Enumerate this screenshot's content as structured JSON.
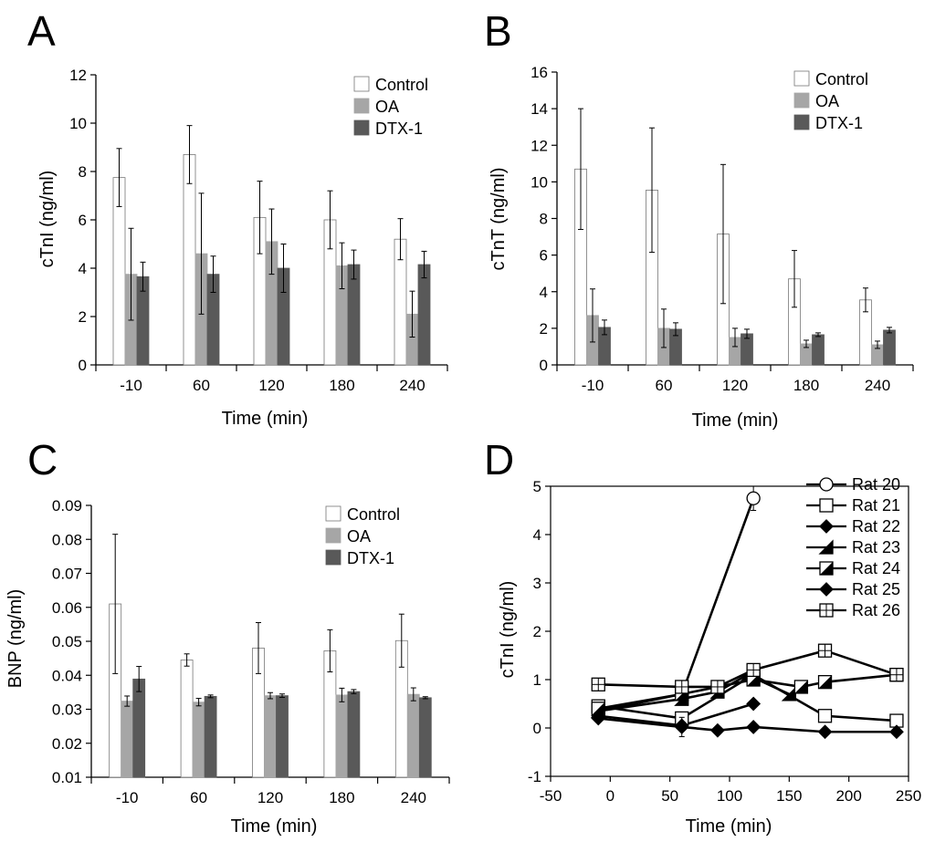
{
  "colors": {
    "control": "#ffffff",
    "oa": "#a6a6a6",
    "dtx": "#595959",
    "axis": "#000000"
  },
  "chart_data": [
    {
      "panel": "A",
      "type": "bar",
      "xlabel": "Time (min)",
      "ylabel": "cTnI (ng/ml)",
      "ylim": [
        0,
        12
      ],
      "yticks": [
        0,
        2,
        4,
        6,
        8,
        10,
        12
      ],
      "categories": [
        "-10",
        "60",
        "120",
        "180",
        "240"
      ],
      "legend_position": "top-right",
      "series": [
        {
          "name": "Control",
          "color_key": "control",
          "values": [
            7.75,
            8.7,
            6.1,
            6.0,
            5.2
          ],
          "errors": [
            1.2,
            1.2,
            1.5,
            1.2,
            0.85
          ]
        },
        {
          "name": "OA",
          "color_key": "oa",
          "values": [
            3.75,
            4.6,
            5.1,
            4.1,
            2.1
          ],
          "errors": [
            1.9,
            2.5,
            1.35,
            0.95,
            0.95
          ]
        },
        {
          "name": "DTX-1",
          "color_key": "dtx",
          "values": [
            3.65,
            3.75,
            4.0,
            4.15,
            4.15
          ],
          "errors": [
            0.6,
            0.75,
            1.0,
            0.6,
            0.55
          ]
        }
      ]
    },
    {
      "panel": "B",
      "type": "bar",
      "xlabel": "Time (min)",
      "ylabel": "cTnT (ng/ml)",
      "ylim": [
        0,
        16
      ],
      "yticks": [
        0,
        2,
        4,
        6,
        8,
        10,
        12,
        14,
        16
      ],
      "categories": [
        "-10",
        "60",
        "120",
        "180",
        "240"
      ],
      "legend_position": "top-right",
      "series": [
        {
          "name": "Control",
          "color_key": "control",
          "values": [
            10.7,
            9.55,
            7.15,
            4.7,
            3.55
          ],
          "errors": [
            3.3,
            3.4,
            3.8,
            1.55,
            0.65
          ]
        },
        {
          "name": "OA",
          "color_key": "oa",
          "values": [
            2.7,
            2.0,
            1.5,
            1.15,
            1.1
          ],
          "errors": [
            1.45,
            1.05,
            0.5,
            0.2,
            0.2
          ]
        },
        {
          "name": "DTX-1",
          "color_key": "dtx",
          "values": [
            2.05,
            1.95,
            1.7,
            1.65,
            1.9
          ],
          "errors": [
            0.4,
            0.35,
            0.25,
            0.1,
            0.15
          ]
        }
      ]
    },
    {
      "panel": "C",
      "type": "bar",
      "xlabel": "Time (min)",
      "ylabel": "BNP (ng/ml)",
      "ylim": [
        0.01,
        0.09
      ],
      "yticks": [
        0.01,
        0.02,
        0.03,
        0.04,
        0.05,
        0.06,
        0.07,
        0.08,
        0.09
      ],
      "ytick_labels": [
        "0.01",
        "0.02",
        "0.03",
        "0.04",
        "0.05",
        "0.06",
        "0.07",
        "0.08",
        "0.09"
      ],
      "categories": [
        "-10",
        "60",
        "120",
        "180",
        "240"
      ],
      "legend_position": "top-right",
      "series": [
        {
          "name": "Control",
          "color_key": "control",
          "values": [
            0.061,
            0.0445,
            0.048,
            0.0472,
            0.0502
          ],
          "errors": [
            0.0205,
            0.0018,
            0.0075,
            0.0062,
            0.0078
          ]
        },
        {
          "name": "OA",
          "color_key": "oa",
          "values": [
            0.0324,
            0.0321,
            0.034,
            0.0342,
            0.0344
          ],
          "errors": [
            0.0015,
            0.0011,
            0.0009,
            0.002,
            0.0019
          ]
        },
        {
          "name": "DTX-1",
          "color_key": "dtx",
          "values": [
            0.0389,
            0.0338,
            0.034,
            0.0352,
            0.0334
          ],
          "errors": [
            0.0037,
            0.0004,
            0.0005,
            0.0006,
            0.0003
          ]
        }
      ]
    },
    {
      "panel": "D",
      "type": "line",
      "xlabel": "Time (min)",
      "ylabel": "cTnI (ng/ml)",
      "xlim": [
        -50,
        250
      ],
      "ylim": [
        -1,
        5
      ],
      "xticks": [
        -50,
        0,
        50,
        100,
        150,
        200,
        250
      ],
      "yticks": [
        -1,
        0,
        1,
        2,
        3,
        4,
        5
      ],
      "legend_position": "top-right",
      "series": [
        {
          "name": "Rat 20",
          "marker": "circle-open",
          "x": [
            -10,
            60,
            120
          ],
          "y": [
            0.35,
            0.7,
            4.75
          ],
          "errors": [
            0,
            0,
            0.25
          ]
        },
        {
          "name": "Rat 21",
          "marker": "square-open",
          "x": [
            -10,
            60,
            120,
            180,
            240
          ],
          "y": [
            0.45,
            0.2,
            1.1,
            0.25,
            0.15
          ],
          "errors": [
            0,
            0,
            0,
            0,
            0
          ]
        },
        {
          "name": "Rat 22",
          "marker": "diamond",
          "x": [
            -10,
            60,
            120
          ],
          "y": [
            0.25,
            0.05,
            0.5
          ],
          "errors": [
            0,
            0,
            0
          ]
        },
        {
          "name": "Rat 23",
          "marker": "triangle",
          "x": [
            -10,
            60,
            90,
            115,
            150
          ],
          "y": [
            0.35,
            0.6,
            0.75,
            1.1,
            0.7
          ],
          "errors": [
            0,
            0,
            0,
            0,
            0
          ]
        },
        {
          "name": "Rat 24",
          "marker": "half-square",
          "x": [
            -10,
            60,
            120,
            160,
            180,
            240
          ],
          "y": [
            0.4,
            0.7,
            1.0,
            0.85,
            0.95,
            1.1
          ],
          "errors": [
            0,
            0,
            0,
            0,
            0,
            0
          ]
        },
        {
          "name": "Rat 25",
          "marker": "diamond",
          "x": [
            -10,
            60,
            90,
            120,
            180,
            240
          ],
          "y": [
            0.2,
            0.02,
            -0.05,
            0.02,
            -0.08,
            -0.08
          ],
          "errors": [
            0,
            0.2,
            0,
            0,
            0,
            0
          ]
        },
        {
          "name": "Rat 26",
          "marker": "square-cross",
          "x": [
            -10,
            60,
            90,
            120,
            180,
            240
          ],
          "y": [
            0.9,
            0.85,
            0.85,
            1.2,
            1.6,
            1.1
          ],
          "errors": [
            0,
            0,
            0,
            0,
            0,
            0
          ]
        }
      ]
    }
  ]
}
